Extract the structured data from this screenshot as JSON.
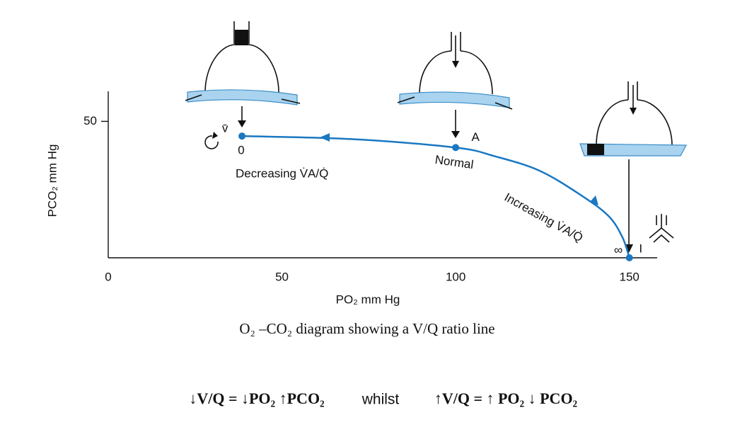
{
  "chart_data": {
    "type": "line",
    "x_label": "PO₂ mm Hg",
    "y_label": "PCO₂ mm Hg",
    "xlim": [
      0,
      158
    ],
    "xticks": [
      0,
      50,
      100,
      150
    ],
    "ylim": [
      0,
      61
    ],
    "yticks": [
      50
    ],
    "series": [
      {
        "color": "#1a78c2",
        "x": [
          38.5,
          70,
          100,
          111,
          124,
          136,
          144,
          148,
          150
        ],
        "values": [
          44.6,
          43.5,
          40.4,
          37.3,
          32,
          23,
          15.3,
          7.5,
          0
        ]
      }
    ],
    "points": {
      "labels": [
        "v̄",
        "A",
        "I"
      ],
      "x": [
        38.5,
        100,
        150
      ],
      "values": [
        44.6,
        40.4,
        0
      ],
      "color": "#1a78c2"
    },
    "annotations": [
      "0",
      "Normal",
      "Decreasing V̇A/Q̇",
      "Increasing V̇A/Q̇",
      "∞"
    ],
    "caption": "O₂ –CO₂ diagram showing a V/Q ratio line",
    "formula": [
      "↓V/Q = ↓PO₂ ↑PCO₂",
      "whilst",
      "↑V/Q = ↑ PO₂ ↓ PCO₂"
    ]
  }
}
